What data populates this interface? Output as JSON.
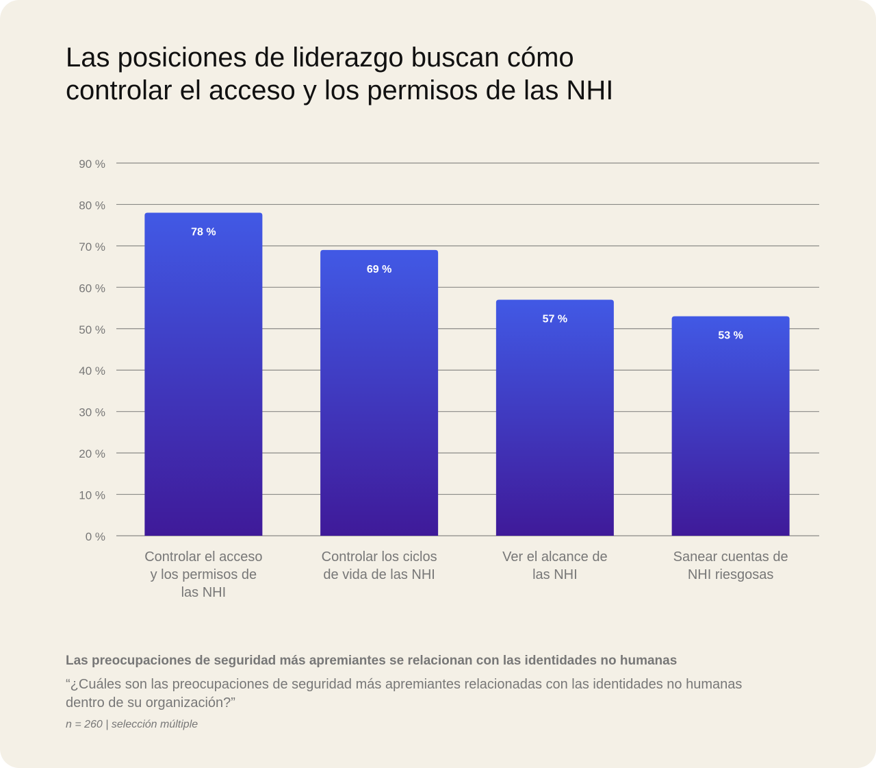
{
  "chart_data": {
    "type": "bar",
    "title": "Las posiciones de liderazgo buscan cómo controlar el acceso y los permisos de las NHI",
    "categories": [
      [
        "Controlar el acceso",
        "y los permisos de",
        "las NHI"
      ],
      [
        "Controlar los ciclos",
        "de vida de las NHI"
      ],
      [
        "Ver el alcance de",
        "las NHI"
      ],
      [
        "Sanear cuentas de",
        "NHI riesgosas"
      ]
    ],
    "values": [
      78,
      69,
      57,
      53
    ],
    "data_labels": [
      "78 %",
      "69 %",
      "57 %",
      "53 %"
    ],
    "ylim": [
      0,
      90
    ],
    "yticks": [
      0,
      10,
      20,
      30,
      40,
      50,
      60,
      70,
      80,
      90
    ],
    "ytick_labels": [
      "0 %",
      "10 %",
      "20 %",
      "30 %",
      "40 %",
      "50 %",
      "60 %",
      "70 %",
      "80 %",
      "90 %"
    ],
    "grid": true,
    "colors": {
      "bar_top": "#4159e5",
      "bar_bottom": "#3f1a99",
      "grid": "#8a8a86",
      "tick_text": "#777777"
    }
  },
  "footer": {
    "title": "Las preocupaciones de seguridad más apremiantes se relacionan con las identidades no humanas",
    "question": "“¿Cuáles son las preocupaciones de seguridad más apremiantes relacionadas con las identidades no humanas dentro de su organización?”",
    "note": "n = 260 | selección múltiple"
  }
}
